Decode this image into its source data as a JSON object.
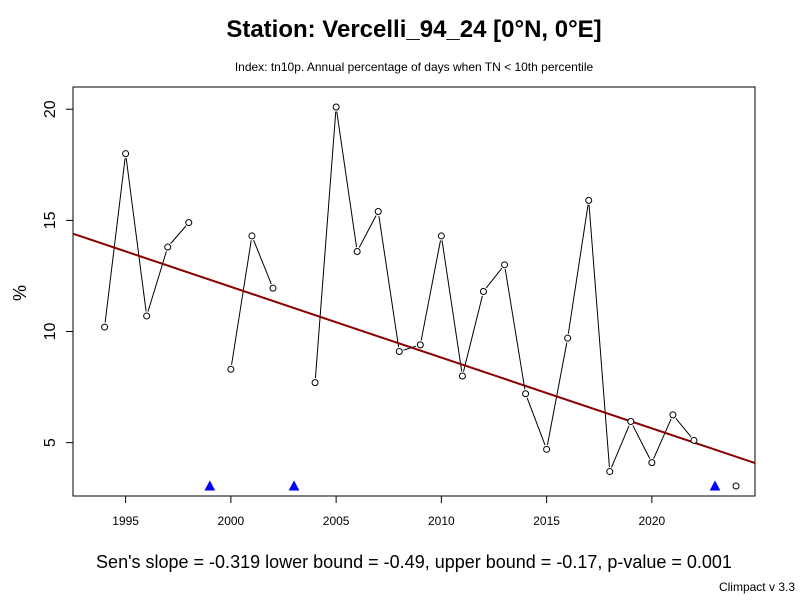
{
  "chart_data": {
    "type": "line",
    "title": "Station: Vercelli_94_24 [0°N, 0°E]",
    "subtitle": "Index: tn10p. Annual percentage of days when TN < 10th percentile",
    "xlabel": "",
    "ylabel": "%",
    "xlim": [
      1992.5,
      2024.9
    ],
    "ylim": [
      2.6,
      21.0
    ],
    "x_ticks": [
      1995,
      2000,
      2005,
      2010,
      2015,
      2020
    ],
    "y_ticks": [
      5,
      10,
      15,
      20
    ],
    "grid": false,
    "series": [
      {
        "x": [
          1994,
          1995,
          1996,
          1997,
          1998,
          1999,
          2000,
          2001,
          2002,
          2003,
          2004,
          2005,
          2006,
          2007,
          2008,
          2009,
          2010,
          2011,
          2012,
          2013,
          2014,
          2015,
          2016,
          2017,
          2018,
          2019,
          2020,
          2021,
          2022,
          2023,
          2024
        ],
        "values": [
          10.2,
          18.0,
          10.7,
          13.8,
          14.9,
          null,
          8.3,
          14.3,
          11.95,
          null,
          7.7,
          20.1,
          13.6,
          15.4,
          9.1,
          9.4,
          14.3,
          8.0,
          11.8,
          13.0,
          7.2,
          4.7,
          9.7,
          15.9,
          3.7,
          5.95,
          4.1,
          6.25,
          5.1,
          null,
          3.05
        ],
        "color": "#000000",
        "marker": "open-circle"
      }
    ],
    "missing_markers": {
      "x": [
        1999,
        2003,
        2023
      ],
      "y": 3.05,
      "color": "#0000ff",
      "marker": "filled-triangle"
    },
    "trend_line": {
      "x": [
        1992.5,
        2024.9
      ],
      "values": [
        14.4,
        4.08
      ],
      "color": "#8b0000"
    }
  },
  "stats_text": "Sen's slope = -0.319   lower bound = -0.49,   upper bound = -0.17,   p-value = 0.001",
  "credit": "Climpact v 3.3"
}
